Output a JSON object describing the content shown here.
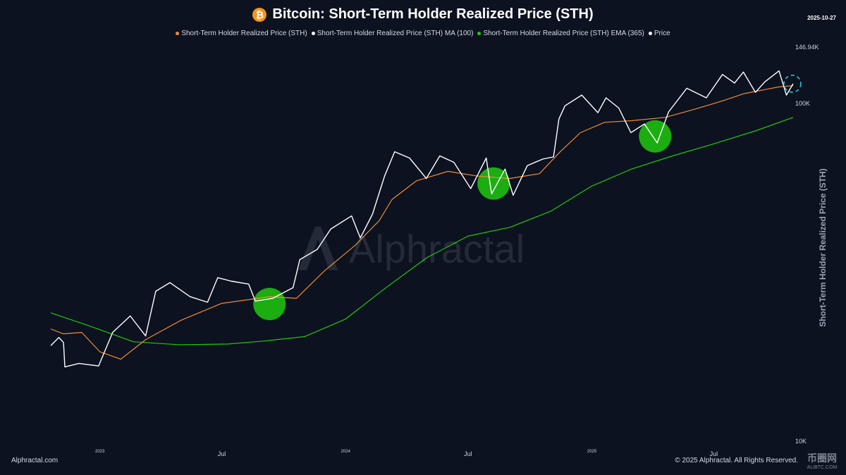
{
  "header": {
    "title": "Bitcoin: Short-Term Holder Realized Price (STH)",
    "date": "2025-10-27",
    "icon": "bitcoin-icon"
  },
  "legend": [
    {
      "label": "Short-Term Holder Realized Price (STH)",
      "color": "#f28b30"
    },
    {
      "label": "Short-Term Holder Realized Price (STH) MA (100)",
      "color": "#ffffff"
    },
    {
      "label": "Short-Term Holder Realized Price (STH) EMA (365)",
      "color": "#22c80a"
    },
    {
      "label": "Price",
      "color": "#ffffff"
    }
  ],
  "watermark": "Alphractal",
  "footer": {
    "left": "Alphractal.com",
    "right": "© 2025 Alphractal. All Rights Reserved.",
    "logo_cn": "币圈网",
    "logo_en": "ALIBTC.COM"
  },
  "chart_data": {
    "type": "line",
    "title": "Bitcoin: Short-Term Holder Realized Price (STH)",
    "ylabel": "Short-Term Holder Realized Price (STH)",
    "yscale": "log",
    "ylim": [
      10000,
      146940
    ],
    "ytick_labels": [
      {
        "value": 146940,
        "label": "146.94K"
      },
      {
        "value": 100000,
        "label": "100K"
      },
      {
        "value": 10000,
        "label": "10K"
      }
    ],
    "xlim": [
      "2022-10-20",
      "2025-10-27"
    ],
    "xtick_labels": [
      {
        "date": "2023-01-01",
        "label": "2023",
        "small": true
      },
      {
        "date": "2023-07-01",
        "label": "Jul",
        "small": false
      },
      {
        "date": "2024-01-01",
        "label": "2024",
        "small": true
      },
      {
        "date": "2024-07-01",
        "label": "Jul",
        "small": false
      },
      {
        "date": "2025-01-01",
        "label": "2025",
        "small": true
      },
      {
        "date": "2025-07-01",
        "label": "Jul",
        "small": false
      }
    ],
    "series": [
      {
        "name": "Short-Term Holder Realized Price (STH) EMA (365)",
        "color": "#22c80a",
        "x": [
          "2022-10-20",
          "2022-12-15",
          "2023-02-20",
          "2023-05-01",
          "2023-07-10",
          "2023-09-01",
          "2023-11-01",
          "2024-01-01",
          "2024-03-01",
          "2024-05-01",
          "2024-07-01",
          "2024-09-01",
          "2024-11-01",
          "2025-01-01",
          "2025-03-01",
          "2025-05-01",
          "2025-07-01",
          "2025-09-01",
          "2025-10-27"
        ],
        "y": [
          24000,
          22000,
          19700,
          19300,
          19400,
          19800,
          20400,
          23000,
          28500,
          35000,
          40500,
          43000,
          48000,
          57000,
          64000,
          70000,
          76000,
          83000,
          91000
        ]
      },
      {
        "name": "Short-Term Holder Realized Price (STH)",
        "color": "#f28b30",
        "x": [
          "2022-10-20",
          "2022-11-08",
          "2022-12-05",
          "2023-01-01",
          "2023-02-01",
          "2023-03-10",
          "2023-05-01",
          "2023-07-01",
          "2023-09-10",
          "2023-10-20",
          "2023-12-01",
          "2024-01-15",
          "2024-02-20",
          "2024-03-10",
          "2024-04-15",
          "2024-06-01",
          "2024-07-15",
          "2024-09-01",
          "2024-10-15",
          "2024-11-15",
          "2024-12-15",
          "2025-01-20",
          "2025-03-01",
          "2025-04-20",
          "2025-06-01",
          "2025-07-15",
          "2025-08-15",
          "2025-09-15",
          "2025-10-05",
          "2025-10-27"
        ],
        "y": [
          21500,
          20800,
          21000,
          18400,
          17500,
          20000,
          22800,
          25600,
          26800,
          26500,
          32000,
          38000,
          45000,
          52000,
          59000,
          63000,
          61000,
          60000,
          62000,
          72000,
          82000,
          88000,
          89000,
          91000,
          96000,
          102000,
          107000,
          110000,
          112000,
          113000
        ]
      },
      {
        "name": "Price",
        "color": "#ffffff",
        "x": [
          "2022-10-20",
          "2022-11-01",
          "2022-11-08",
          "2022-11-10",
          "2022-12-01",
          "2022-12-30",
          "2023-01-20",
          "2023-02-15",
          "2023-03-10",
          "2023-03-25",
          "2023-04-15",
          "2023-05-15",
          "2023-06-10",
          "2023-06-25",
          "2023-07-15",
          "2023-08-10",
          "2023-08-20",
          "2023-09-15",
          "2023-10-15",
          "2023-10-25",
          "2023-11-20",
          "2023-12-10",
          "2024-01-10",
          "2024-01-23",
          "2024-02-10",
          "2024-02-28",
          "2024-03-14",
          "2024-04-05",
          "2024-04-30",
          "2024-05-20",
          "2024-06-10",
          "2024-07-05",
          "2024-07-28",
          "2024-08-05",
          "2024-08-25",
          "2024-09-06",
          "2024-09-27",
          "2024-10-20",
          "2024-11-05",
          "2024-11-13",
          "2024-11-22",
          "2024-12-17",
          "2025-01-10",
          "2025-01-22",
          "2025-02-10",
          "2025-02-28",
          "2025-03-20",
          "2025-04-08",
          "2025-04-25",
          "2025-05-22",
          "2025-06-20",
          "2025-07-14",
          "2025-08-01",
          "2025-08-14",
          "2025-09-01",
          "2025-09-15",
          "2025-10-06",
          "2025-10-17",
          "2025-10-27"
        ],
        "y": [
          19200,
          20300,
          19600,
          16600,
          17000,
          16700,
          21000,
          23500,
          20500,
          27800,
          29500,
          26800,
          25800,
          30500,
          29800,
          29200,
          26000,
          26500,
          28500,
          34500,
          37000,
          42500,
          46500,
          40000,
          47000,
          61000,
          72000,
          69000,
          60000,
          70000,
          67000,
          56000,
          69000,
          54000,
          64000,
          53500,
          65500,
          68500,
          69500,
          90000,
          98500,
          106000,
          94000,
          104000,
          97000,
          82000,
          87000,
          76500,
          94500,
          111000,
          104000,
          122000,
          115000,
          124000,
          108000,
          116000,
          125000,
          106000,
          114500
        ]
      }
    ],
    "highlights": [
      {
        "date": "2023-09-10",
        "value": 25500,
        "color": "#1ebf0f"
      },
      {
        "date": "2024-08-08",
        "value": 58000,
        "color": "#1ebf0f"
      },
      {
        "date": "2025-04-05",
        "value": 80000,
        "color": "#1ebf0f"
      }
    ],
    "current_marker": {
      "date": "2025-10-27",
      "value": 114500,
      "color": "#27c7d9"
    },
    "grid": false,
    "legend_position": "top"
  }
}
